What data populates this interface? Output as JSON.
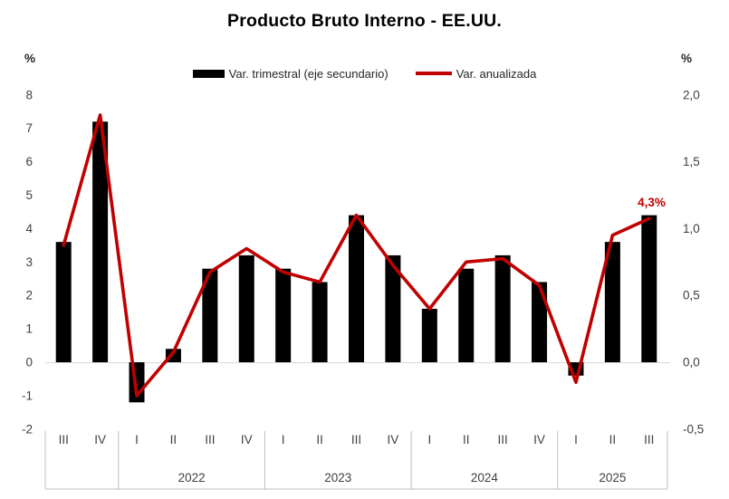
{
  "page": {
    "background": "#FFFFFF"
  },
  "chart_data": {
    "type": "combo-bar-line",
    "title": "Producto Bruto Interno - EE.UU.",
    "categories": [
      "III",
      "IV",
      "I",
      "II",
      "III",
      "IV",
      "I",
      "II",
      "III",
      "IV",
      "I",
      "II",
      "III",
      "IV",
      "I",
      "II",
      "III"
    ],
    "year_groups": [
      {
        "label": "",
        "count": 2
      },
      {
        "label": "2022",
        "count": 4
      },
      {
        "label": "2023",
        "count": 4
      },
      {
        "label": "2024",
        "count": 4
      },
      {
        "label": "2025",
        "count": 3
      }
    ],
    "series": [
      {
        "name": "Var. trimestral (eje secundario)",
        "type": "bar",
        "axis": "right",
        "color": "#000000",
        "values": [
          0.9,
          1.8,
          -0.3,
          0.1,
          0.7,
          0.8,
          0.7,
          0.6,
          1.1,
          0.8,
          0.4,
          0.7,
          0.8,
          0.6,
          -0.1,
          0.9,
          1.1
        ]
      },
      {
        "name": "Var. anualizada",
        "type": "line",
        "axis": "left",
        "color": "#C00000",
        "values": [
          3.5,
          7.4,
          -1.0,
          0.3,
          2.7,
          3.4,
          2.7,
          2.4,
          4.4,
          2.9,
          1.6,
          3.0,
          3.1,
          2.3,
          -0.6,
          3.8,
          4.3
        ]
      }
    ],
    "left_axis": {
      "unit": "%",
      "ticks": [
        "8",
        "7",
        "6",
        "5",
        "4",
        "3",
        "2",
        "1",
        "0",
        "-1",
        "-2"
      ],
      "tick_values": [
        8,
        7,
        6,
        5,
        4,
        3,
        2,
        1,
        0,
        -1,
        -2
      ],
      "range": [
        -2,
        8
      ]
    },
    "right_axis": {
      "unit": "%",
      "ticks": [
        "2,0",
        "1,5",
        "1,0",
        "0,5",
        "0,0",
        "-0,5"
      ],
      "tick_values": [
        2,
        1.5,
        1,
        0.5,
        0,
        -0.5
      ],
      "range": [
        -0.5,
        2
      ]
    },
    "annotation": {
      "text": "4,3%",
      "attached_to": "Var. anualizada",
      "point": "III 2025"
    },
    "legend_position": "top",
    "gridlines": "zero-only",
    "theme": {
      "gridline": "#D9D9D9",
      "separator": "#BFBFBF",
      "text": "#3F3F3F",
      "title_color": "#000000",
      "legend_text": "#262626",
      "annotation_color": "#C00000"
    }
  }
}
